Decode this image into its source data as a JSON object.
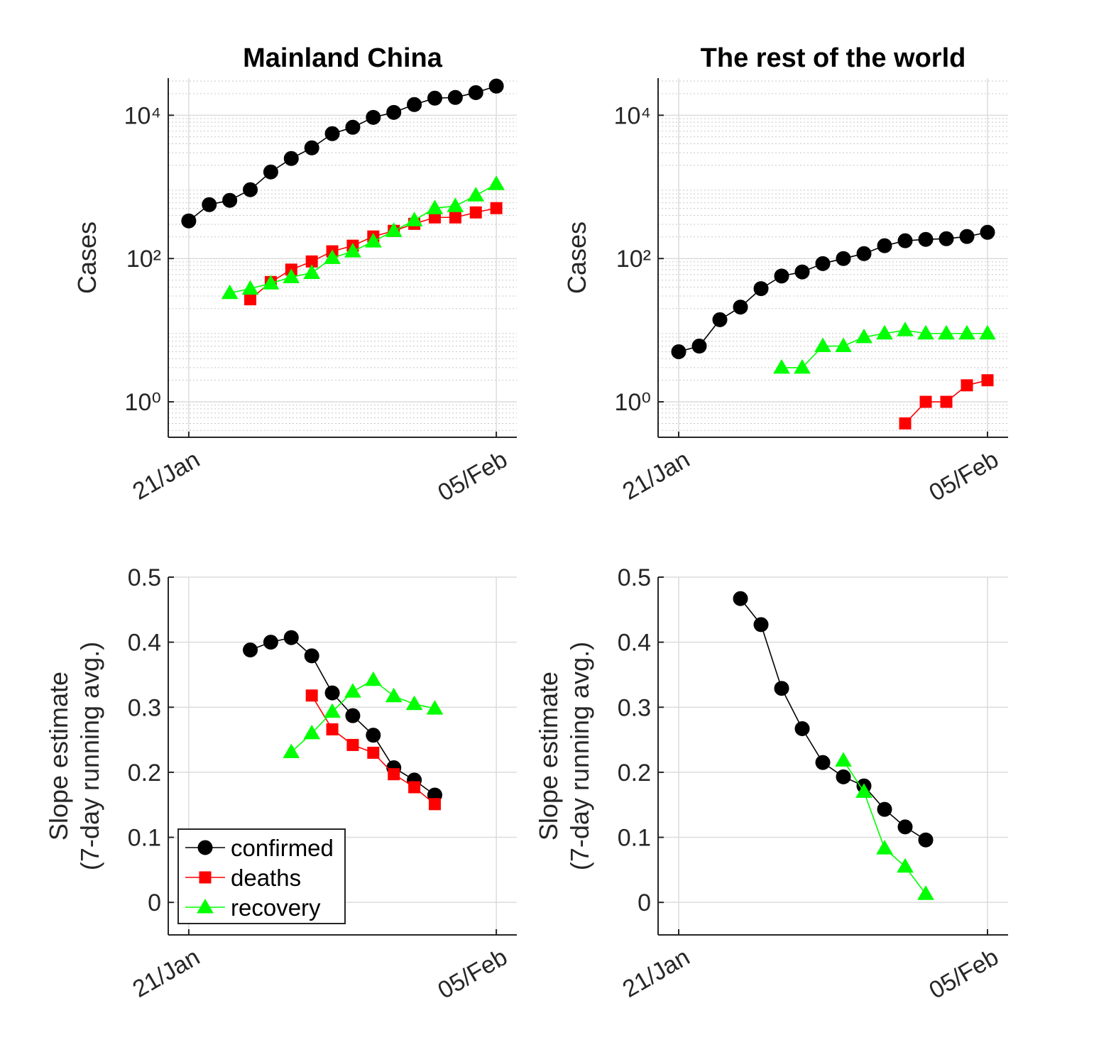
{
  "chart_data": [
    {
      "type": "line",
      "title": "Mainland China",
      "ylabel": [
        "Cases"
      ],
      "yscale": "log",
      "categories": [
        "21/Jan",
        null,
        null,
        null,
        null,
        null,
        null,
        null,
        null,
        null,
        null,
        null,
        null,
        null,
        null,
        "05/Feb"
      ],
      "ylim": [
        0.32,
        33000
      ],
      "yticks": [
        {
          "value": 1,
          "label": "10⁰"
        },
        {
          "value": 100,
          "label": "10²"
        },
        {
          "value": 10000,
          "label": "10⁴"
        }
      ],
      "grid": true,
      "minor_grid": true,
      "legend": false,
      "series": [
        {
          "name": "confirmed",
          "color": "#000000",
          "marker": "circle",
          "values": [
            335,
            565,
            649,
            913,
            1615,
            2490,
            3505,
            5530,
            6790,
            9340,
            10960,
            14100,
            17300,
            17700,
            20700,
            25500
          ]
        },
        {
          "name": "deaths",
          "color": "#ff0000",
          "marker": "square",
          "values": [
            null,
            null,
            null,
            27,
            47,
            70,
            91,
            126,
            151,
            203,
            243,
            305,
            375,
            375,
            440,
            505
          ]
        },
        {
          "name": "recovery",
          "color": "#00ff00",
          "marker": "triangle",
          "values": [
            null,
            null,
            33,
            38,
            45,
            55,
            63,
            102,
            126,
            173,
            243,
            342,
            505,
            540,
            760,
            1095
          ]
        }
      ]
    },
    {
      "type": "line",
      "title": "The rest of the world",
      "ylabel": [
        "Cases"
      ],
      "yscale": "log",
      "categories": [
        "21/Jan",
        null,
        null,
        null,
        null,
        null,
        null,
        null,
        null,
        null,
        null,
        null,
        null,
        null,
        null,
        "05/Feb"
      ],
      "ylim": [
        0.32,
        33000
      ],
      "yticks": [
        {
          "value": 1,
          "label": "10⁰"
        },
        {
          "value": 100,
          "label": "10²"
        },
        {
          "value": 10000,
          "label": "10⁴"
        }
      ],
      "grid": true,
      "minor_grid": true,
      "legend": false,
      "series": [
        {
          "name": "confirmed",
          "color": "#000000",
          "marker": "circle",
          "values": [
            5,
            6,
            14,
            21,
            38,
            57,
            65,
            85,
            100,
            117,
            151,
            177,
            185,
            189,
            203,
            232
          ]
        },
        {
          "name": "deaths",
          "color": "#ff0000",
          "marker": "square",
          "values": [
            null,
            null,
            null,
            null,
            null,
            null,
            null,
            null,
            null,
            null,
            null,
            0.5,
            1,
            1,
            1.7,
            2
          ]
        },
        {
          "name": "recovery",
          "color": "#00ff00",
          "marker": "triangle",
          "values": [
            null,
            null,
            null,
            null,
            null,
            3,
            3,
            6,
            6,
            8,
            9,
            10,
            9,
            9,
            9,
            9
          ]
        }
      ]
    },
    {
      "type": "line",
      "ylabel": [
        "Slope estimate",
        "(7-day running avg.)"
      ],
      "yscale": "linear",
      "categories": [
        "21/Jan",
        null,
        null,
        null,
        null,
        null,
        null,
        null,
        null,
        null,
        null,
        null,
        null,
        null,
        null,
        "05/Feb"
      ],
      "ylim": [
        -0.05,
        0.5
      ],
      "yticks": [
        0,
        0.1,
        0.2,
        0.3,
        0.4,
        0.5
      ],
      "grid": true,
      "minor_grid": false,
      "legend": true,
      "legend_loc": "lower left",
      "series": [
        {
          "name": "confirmed",
          "color": "#000000",
          "marker": "circle",
          "values": [
            null,
            null,
            null,
            0.388,
            0.4,
            0.407,
            0.379,
            0.322,
            0.287,
            0.257,
            0.207,
            0.188,
            0.165,
            null,
            null,
            null
          ]
        },
        {
          "name": "deaths",
          "color": "#ff0000",
          "marker": "square",
          "values": [
            null,
            null,
            null,
            null,
            null,
            null,
            0.318,
            0.266,
            0.242,
            0.23,
            0.197,
            0.177,
            0.151,
            null,
            null,
            null
          ]
        },
        {
          "name": "recovery",
          "color": "#00ff00",
          "marker": "triangle",
          "values": [
            null,
            null,
            null,
            null,
            null,
            0.231,
            0.26,
            0.293,
            0.324,
            0.342,
            0.317,
            0.305,
            0.298,
            null,
            null,
            null
          ]
        }
      ]
    },
    {
      "type": "line",
      "ylabel": [
        "Slope estimate",
        "(7-day running avg.)"
      ],
      "yscale": "linear",
      "categories": [
        "21/Jan",
        null,
        null,
        null,
        null,
        null,
        null,
        null,
        null,
        null,
        null,
        null,
        null,
        null,
        null,
        "05/Feb"
      ],
      "ylim": [
        -0.05,
        0.5
      ],
      "yticks": [
        0,
        0.1,
        0.2,
        0.3,
        0.4,
        0.5
      ],
      "grid": true,
      "minor_grid": false,
      "legend": false,
      "series": [
        {
          "name": "confirmed",
          "color": "#000000",
          "marker": "circle",
          "values": [
            null,
            null,
            null,
            0.467,
            0.427,
            0.329,
            0.267,
            0.215,
            0.193,
            0.179,
            0.143,
            0.116,
            0.096,
            null,
            null,
            null
          ]
        },
        {
          "name": "deaths",
          "color": "#ff0000",
          "marker": "square",
          "values": [
            null,
            null,
            null,
            null,
            null,
            null,
            null,
            null,
            null,
            null,
            null,
            null,
            null,
            null,
            null,
            null
          ]
        },
        {
          "name": "recovery",
          "color": "#00ff00",
          "marker": "triangle",
          "values": [
            null,
            null,
            null,
            null,
            null,
            null,
            null,
            null,
            0.218,
            0.17,
            0.083,
            0.055,
            0.013,
            null,
            null,
            null
          ]
        }
      ]
    }
  ]
}
